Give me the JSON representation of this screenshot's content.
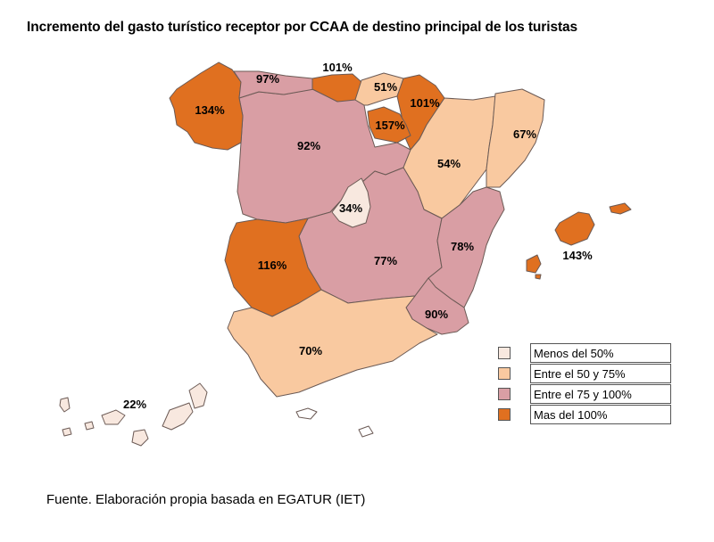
{
  "title": "Incremento del gasto turístico receptor por CCAA de destino principal de los turistas",
  "source": "Fuente. Elaboración propia basada en EGATUR (IET)",
  "colors": {
    "menos_50": "#f8e8df",
    "entre_50_75": "#f9c9a0",
    "entre_75_100": "#d99ea4",
    "mas_100": "#e07020",
    "islands_outline": "#ffffff"
  },
  "legend": [
    {
      "label": "Menos del 50%",
      "color": "#f8e8df"
    },
    {
      "label": "Entre el 50 y 75%",
      "color": "#f9c9a0"
    },
    {
      "label": "Entre el 75 y 100%",
      "color": "#d99ea4"
    },
    {
      "label": "Mas del 100%",
      "color": "#e07020"
    }
  ],
  "regions": [
    {
      "id": "galicia",
      "value": "134%",
      "color": "#e07020"
    },
    {
      "id": "asturias",
      "value": "97%",
      "color": "#d99ea4"
    },
    {
      "id": "cantabria",
      "value": "101%",
      "color": "#e07020"
    },
    {
      "id": "pais-vasco",
      "value": "51%",
      "color": "#f9c9a0"
    },
    {
      "id": "navarra",
      "value": "101%",
      "color": "#e07020"
    },
    {
      "id": "la-rioja",
      "value": "157%",
      "color": "#e07020"
    },
    {
      "id": "castilla-y-leon",
      "value": "92%",
      "color": "#d99ea4"
    },
    {
      "id": "aragon",
      "value": "54%",
      "color": "#f9c9a0"
    },
    {
      "id": "cataluna",
      "value": "67%",
      "color": "#f9c9a0"
    },
    {
      "id": "madrid",
      "value": "34%",
      "color": "#f8e8df"
    },
    {
      "id": "extremadura",
      "value": "116%",
      "color": "#e07020"
    },
    {
      "id": "castilla-la-mancha",
      "value": "77%",
      "color": "#d99ea4"
    },
    {
      "id": "comunidad-valenciana",
      "value": "78%",
      "color": "#d99ea4"
    },
    {
      "id": "baleares",
      "value": "143%",
      "color": "#e07020"
    },
    {
      "id": "murcia",
      "value": "90%",
      "color": "#d99ea4"
    },
    {
      "id": "andalucia",
      "value": "70%",
      "color": "#f9c9a0"
    },
    {
      "id": "canarias",
      "value": "22%",
      "color": "#f8e8df"
    }
  ]
}
